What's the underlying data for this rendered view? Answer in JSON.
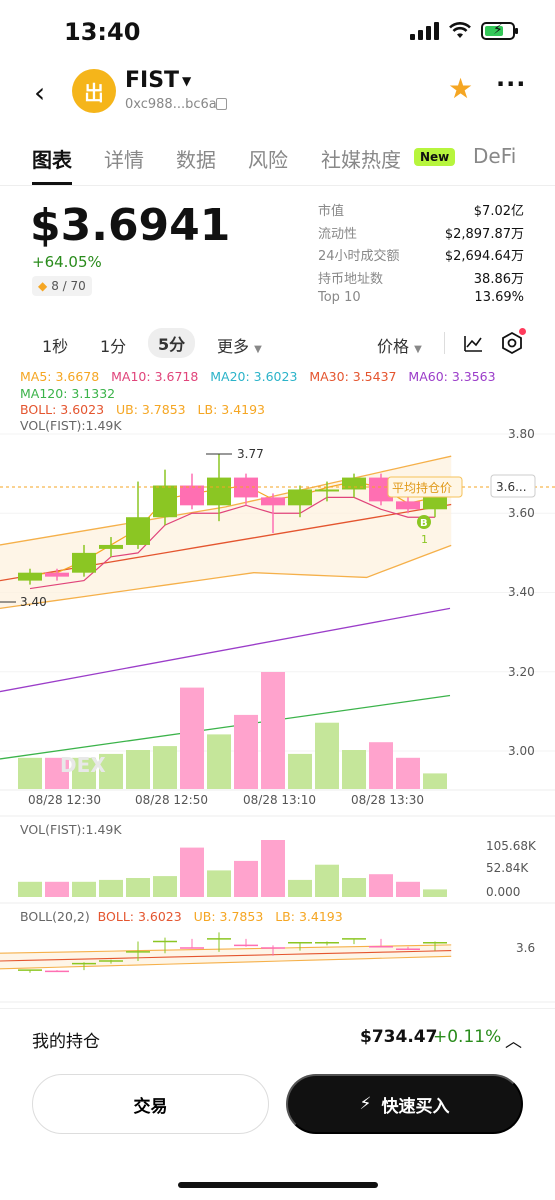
{
  "status": {
    "time": "13:40"
  },
  "header": {
    "token_name": "FIST",
    "address": "0xc988...bc6a",
    "logo_glyph": "岀"
  },
  "tabs": [
    {
      "label": "图表"
    },
    {
      "label": "详情"
    },
    {
      "label": "数据"
    },
    {
      "label": "风险"
    },
    {
      "label": "社媒热度"
    },
    {
      "label": "DeFi"
    }
  ],
  "new_badge": "New",
  "price": {
    "value": "$3.6941",
    "change": "+64.05%",
    "score": "8 / 70"
  },
  "stats": [
    {
      "k": "市值",
      "v": "$7.02亿"
    },
    {
      "k": "流动性",
      "v": "$2,897.87万"
    },
    {
      "k": "24小时成交额",
      "v": "$2,694.64万"
    },
    {
      "k": "持币地址数",
      "v": "38.86万"
    },
    {
      "k": "Top 10",
      "v": "13.69%"
    }
  ],
  "intervals": [
    "1秒",
    "1分",
    "5分",
    "更多"
  ],
  "price_toggle": "价格",
  "indicators": {
    "ma5": "MA5: 3.6678",
    "ma10": "MA10: 3.6718",
    "ma20": "MA20: 3.6023",
    "ma30": "MA30: 3.5437",
    "ma60": "MA60: 3.3563",
    "ma120": "MA120: 3.1332",
    "boll": "BOLL: 3.6023",
    "ub": "UB: 3.7853",
    "lb": "LB: 3.4193",
    "vol": "VOL(FIST):1.49K",
    "vol2": "VOL(FIST):1.49K",
    "boll2_name": "BOLL(20,2)",
    "boll2": "BOLL: 3.6023",
    "ub2": "UB: 3.7853",
    "lb2": "LB: 3.4193"
  },
  "chart_labels": {
    "high_marker": "3.77",
    "low_marker": "3.40",
    "avg_cost": "平均持仓价",
    "current_price_tag": "3.6...",
    "buy_marker": "B",
    "buy_count": "1",
    "watermark": "DEX"
  },
  "chart_data": {
    "type": "candlestick",
    "y_ticks": [
      "3.80",
      "3.60",
      "3.40",
      "3.20",
      "3.00"
    ],
    "x_ticks": [
      "08/28 12:30",
      "08/28 12:50",
      "08/28 13:10",
      "08/28 13:30"
    ],
    "vol_ticks": [
      "105.68K",
      "52.84K",
      "0.000"
    ],
    "boll_tick": "3.6",
    "candles": [
      {
        "o": 3.43,
        "c": 3.45,
        "h": 3.46,
        "l": 3.42,
        "up": true
      },
      {
        "o": 3.45,
        "c": 3.44,
        "h": 3.46,
        "l": 3.43,
        "up": false
      },
      {
        "o": 3.45,
        "c": 3.5,
        "h": 3.52,
        "l": 3.44,
        "up": true
      },
      {
        "o": 3.51,
        "c": 3.52,
        "h": 3.54,
        "l": 3.49,
        "up": true
      },
      {
        "o": 3.52,
        "c": 3.59,
        "h": 3.68,
        "l": 3.51,
        "up": true
      },
      {
        "o": 3.59,
        "c": 3.67,
        "h": 3.71,
        "l": 3.57,
        "up": true
      },
      {
        "o": 3.67,
        "c": 3.62,
        "h": 3.7,
        "l": 3.61,
        "up": false
      },
      {
        "o": 3.62,
        "c": 3.69,
        "h": 3.75,
        "l": 3.58,
        "up": true
      },
      {
        "o": 3.69,
        "c": 3.64,
        "h": 3.7,
        "l": 3.62,
        "up": false
      },
      {
        "o": 3.64,
        "c": 3.62,
        "h": 3.65,
        "l": 3.55,
        "up": false
      },
      {
        "o": 3.62,
        "c": 3.66,
        "h": 3.67,
        "l": 3.59,
        "up": true
      },
      {
        "o": 3.66,
        "c": 3.66,
        "h": 3.68,
        "l": 3.63,
        "up": true
      },
      {
        "o": 3.66,
        "c": 3.69,
        "h": 3.7,
        "l": 3.64,
        "up": true
      },
      {
        "o": 3.69,
        "c": 3.63,
        "h": 3.7,
        "l": 3.62,
        "up": false
      },
      {
        "o": 3.63,
        "c": 3.61,
        "h": 3.64,
        "l": 3.6,
        "up": false
      },
      {
        "o": 3.61,
        "c": 3.66,
        "h": 3.68,
        "l": 3.59,
        "up": true
      }
    ],
    "volumes": [
      {
        "v": 8,
        "up": true
      },
      {
        "v": 8,
        "up": false
      },
      {
        "v": 8,
        "up": true
      },
      {
        "v": 9,
        "up": true
      },
      {
        "v": 10,
        "up": true
      },
      {
        "v": 11,
        "up": true
      },
      {
        "v": 26,
        "up": false
      },
      {
        "v": 14,
        "up": true
      },
      {
        "v": 19,
        "up": false
      },
      {
        "v": 30,
        "up": false
      },
      {
        "v": 9,
        "up": true
      },
      {
        "v": 17,
        "up": true
      },
      {
        "v": 10,
        "up": true
      },
      {
        "v": 12,
        "up": false
      },
      {
        "v": 8,
        "up": false
      },
      {
        "v": 4,
        "up": true
      }
    ]
  },
  "holdings": {
    "label": "我的持仓",
    "value": "$734.47",
    "change": "+0.11%"
  },
  "buttons": {
    "trade": "交易",
    "quick_buy": "快速买入"
  },
  "colors": {
    "up": "#8bc623",
    "down": "#ff6fb2",
    "accent": "#b7f53d"
  }
}
